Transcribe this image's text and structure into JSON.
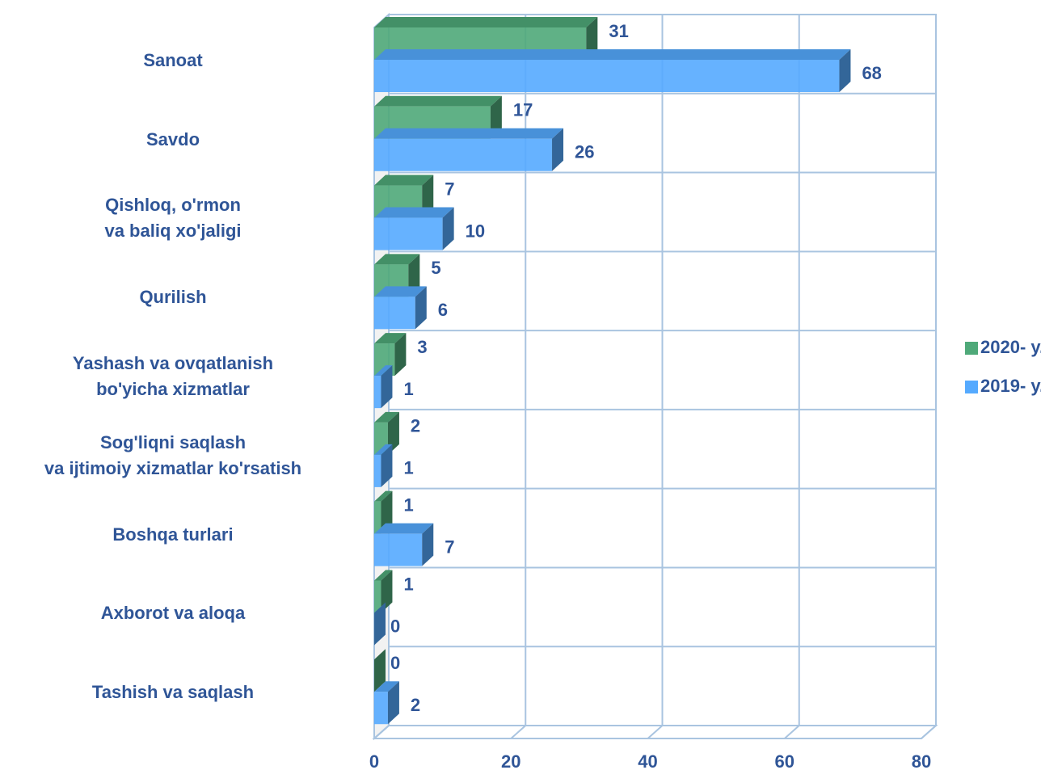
{
  "chart_data": {
    "type": "bar",
    "orientation": "horizontal",
    "categories": [
      "Sanoat",
      "Savdo",
      "Qishloq, o'rmon\nva baliq xo'jaligi",
      "Qurilish",
      "Yashash va ovqatlanish\nbo'yicha xizmatlar",
      "Sog'liqni saqlash\nva ijtimoiy xizmatlar ko'rsatish",
      "Boshqa turlari",
      "Axborot va aloqa",
      "Tashish va saqlash"
    ],
    "series": [
      {
        "name": "2020- y.",
        "color": "#4fa979",
        "values": [
          31,
          17,
          7,
          5,
          3,
          2,
          1,
          1,
          0
        ]
      },
      {
        "name": "2019- y.",
        "color": "#55aaff",
        "values": [
          68,
          26,
          10,
          6,
          1,
          1,
          7,
          0,
          2
        ]
      }
    ],
    "xlim": [
      0,
      80
    ],
    "xticks": [
      0,
      20,
      40,
      60,
      80
    ],
    "grid": true,
    "legend": "right"
  }
}
